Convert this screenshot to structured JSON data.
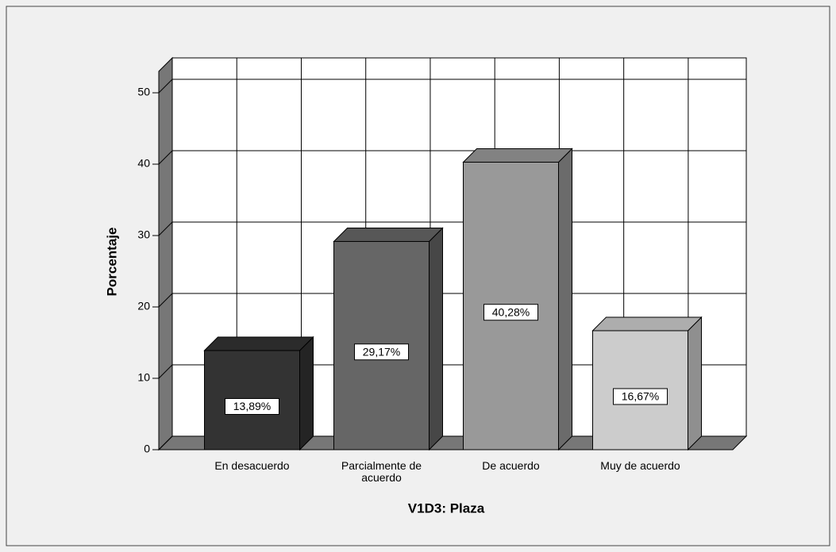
{
  "chart_data": {
    "type": "bar3d",
    "categories": [
      "En desacuerdo",
      "Parcialmente de acuerdo",
      "De acuerdo",
      "Muy de acuerdo"
    ],
    "values": [
      13.89,
      29.17,
      40.28,
      16.67
    ],
    "value_labels": [
      "13,89%",
      "29,17%",
      "40,28%",
      "16,67%"
    ],
    "colors": [
      "#333333",
      "#666666",
      "#999999",
      "#cccccc"
    ],
    "ylabel": "Porcentaje",
    "xlabel": "V1D3: Plaza",
    "ylim": [
      0,
      53
    ],
    "yticks": [
      0,
      10,
      20,
      30,
      40,
      50
    ],
    "grid": true
  }
}
